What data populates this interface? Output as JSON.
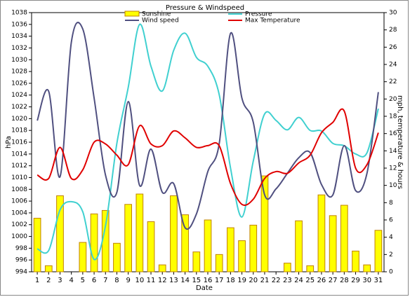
{
  "chart_data": {
    "type": "combo",
    "title": "Pressure & Windspeed",
    "xlabel": "Date",
    "ylabel": "hPa",
    "y2label": "mph, temperature & hours",
    "categories": [
      "1",
      "2",
      "3",
      "4",
      "5",
      "6",
      "7",
      "8",
      "9",
      "10",
      "11",
      "12",
      "13",
      "14",
      "15",
      "16",
      "17",
      "18",
      "19",
      "20",
      "21",
      "22",
      "23",
      "24",
      "25",
      "26",
      "27",
      "28",
      "29",
      "30",
      "31"
    ],
    "ylim": [
      994,
      1038
    ],
    "yticks": [
      994,
      996,
      998,
      1000,
      1002,
      1004,
      1006,
      1008,
      1010,
      1012,
      1014,
      1016,
      1018,
      1020,
      1022,
      1024,
      1026,
      1028,
      1030,
      1032,
      1034,
      1036,
      1038
    ],
    "y2lim": [
      0,
      30
    ],
    "y2ticks": [
      0,
      2,
      4,
      6,
      8,
      10,
      12,
      14,
      16,
      18,
      20,
      22,
      24,
      26,
      28,
      30
    ],
    "series": [
      {
        "name": "Sunshine",
        "kind": "bar",
        "axis": "y2",
        "color": "#ffff00",
        "values": [
          6.2,
          0.7,
          8.8,
          0,
          3.4,
          6.7,
          7.1,
          3.3,
          7.8,
          9.0,
          5.8,
          0.8,
          8.8,
          6.6,
          2.3,
          6.0,
          2.0,
          5.1,
          3.6,
          5.4,
          11.1,
          0,
          1.0,
          5.9,
          0.7,
          8.9,
          6.5,
          7.7,
          2.4,
          0.8,
          4.8
        ]
      },
      {
        "name": "Pressure",
        "kind": "line",
        "axis": "y",
        "color": "#40d0d0",
        "values": [
          997.9,
          997.6,
          1004.5,
          1005.9,
          1004.2,
          996.1,
          1001.8,
          1015.8,
          1025.3,
          1036,
          1028.9,
          1024.7,
          1031.6,
          1034.5,
          1030.4,
          1028.9,
          1024.1,
          1011.6,
          1003.3,
          1012.8,
          1020.8,
          1019.7,
          1018.1,
          1020.2,
          1018,
          1017.9,
          1015.8,
          1015.4,
          1014,
          1014.2,
          1021.7
        ]
      },
      {
        "name": "Wind speed",
        "kind": "line",
        "axis": "y2",
        "color": "#505080",
        "values": [
          17.5,
          20.9,
          11,
          26.6,
          28.1,
          20.1,
          11.2,
          9.2,
          19.7,
          10,
          14.2,
          9.2,
          10.2,
          5.1,
          6.7,
          11.6,
          14.8,
          27.6,
          20.1,
          17.3,
          8.9,
          9.6,
          11.4,
          13.2,
          13.8,
          10.1,
          8.9,
          14.6,
          9.4,
          11.4,
          20.8
        ]
      },
      {
        "name": "Max Temperature",
        "kind": "line",
        "axis": "y2",
        "color": "#e00000",
        "values": [
          11.2,
          10.8,
          14.4,
          10.8,
          11.8,
          15,
          14.8,
          13.5,
          12.4,
          16.9,
          14.8,
          14.6,
          16.3,
          15.5,
          14.4,
          14.6,
          14.6,
          10.2,
          7.8,
          8.4,
          10.8,
          11.6,
          11.4,
          12.6,
          13.5,
          16.1,
          17.3,
          18.6,
          12,
          12.4,
          16.1
        ]
      }
    ]
  }
}
